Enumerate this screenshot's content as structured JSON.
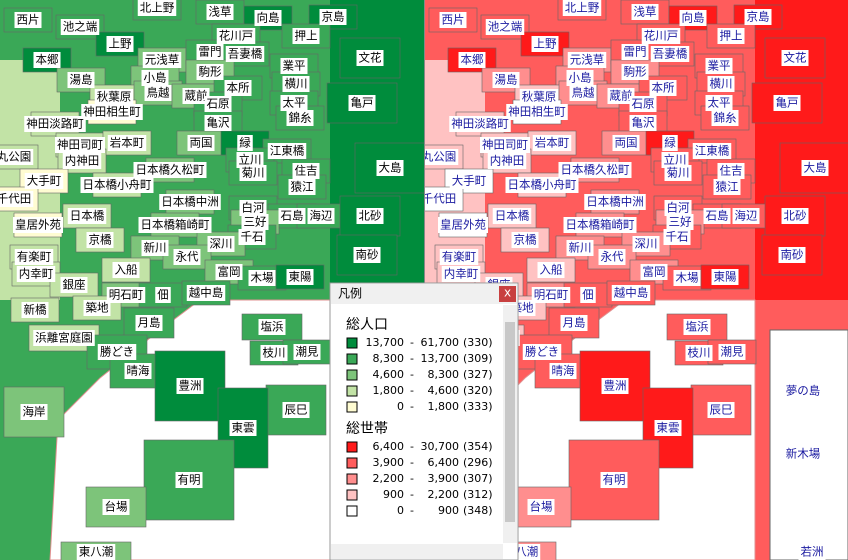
{
  "places": [
    "西片",
    "池之端",
    "北上野",
    "浅草",
    "向島",
    "京島",
    "上野",
    "元浅草",
    "花川戸",
    "押上",
    "本郷",
    "雷門",
    "吾妻橋",
    "文花",
    "駒形",
    "業平",
    "湯島",
    "小島",
    "秋葉原",
    "鳥越",
    "蔵前",
    "本所",
    "横川",
    "神田相生町",
    "石原",
    "太平",
    "亀戸",
    "神田淡路町",
    "亀沢",
    "錦糸",
    "神田司町",
    "岩本町",
    "両国",
    "緑",
    "江東橋",
    "丸公園",
    "内神田",
    "日本橋久松町",
    "立川",
    "住吉",
    "大島",
    "大手町",
    "日本橋小舟町",
    "菊川",
    "猿江",
    "千代田",
    "日本橋中洲",
    "白河",
    "石島",
    "海辺",
    "北砂",
    "日本橋",
    "日本橋箱崎町",
    "三好",
    "皇居外苑",
    "京橋",
    "千石",
    "新川",
    "深川",
    "南砂",
    "有楽町",
    "永代",
    "入船",
    "富岡",
    "木場",
    "東陽",
    "内幸町",
    "銀座",
    "明石町",
    "佃",
    "越中島",
    "新橋",
    "築地",
    "月島",
    "塩浜",
    "浜離宮庭園",
    "枝川",
    "潮見",
    "勝どき",
    "晴海",
    "豊洲",
    "辰巳",
    "海岸",
    "東雲",
    "有明",
    "台場",
    "東八潮"
  ],
  "right_map_extra": [
    "夢の島",
    "新木場",
    "若洲"
  ],
  "legend": {
    "title": "凡例",
    "close": "x",
    "separator": "-",
    "groups": [
      {
        "title": "総人口",
        "items": [
          {
            "lo": "13,700",
            "hi": "61,700",
            "count": "(330)",
            "color": "#008c3c"
          },
          {
            "lo": "8,300",
            "hi": "13,700",
            "count": "(309)",
            "color": "#3aa857"
          },
          {
            "lo": "4,600",
            "hi": "8,300",
            "count": "(327)",
            "color": "#7dc47a"
          },
          {
            "lo": "1,800",
            "hi": "4,600",
            "count": "(320)",
            "color": "#c2e3a6"
          },
          {
            "lo": "0",
            "hi": "1,800",
            "count": "(333)",
            "color": "#fffcd2"
          }
        ]
      },
      {
        "title": "総世帯",
        "items": [
          {
            "lo": "6,400",
            "hi": "30,700",
            "count": "(354)",
            "color": "#ff1a1a"
          },
          {
            "lo": "3,900",
            "hi": "6,400",
            "count": "(296)",
            "color": "#ff5c5c"
          },
          {
            "lo": "2,200",
            "hi": "3,900",
            "count": "(307)",
            "color": "#ff8e8e"
          },
          {
            "lo": "900",
            "hi": "2,200",
            "count": "(312)",
            "color": "#ffc2c2"
          },
          {
            "lo": "0",
            "hi": "900",
            "count": "(348)",
            "color": "#ffffff"
          }
        ]
      }
    ]
  }
}
